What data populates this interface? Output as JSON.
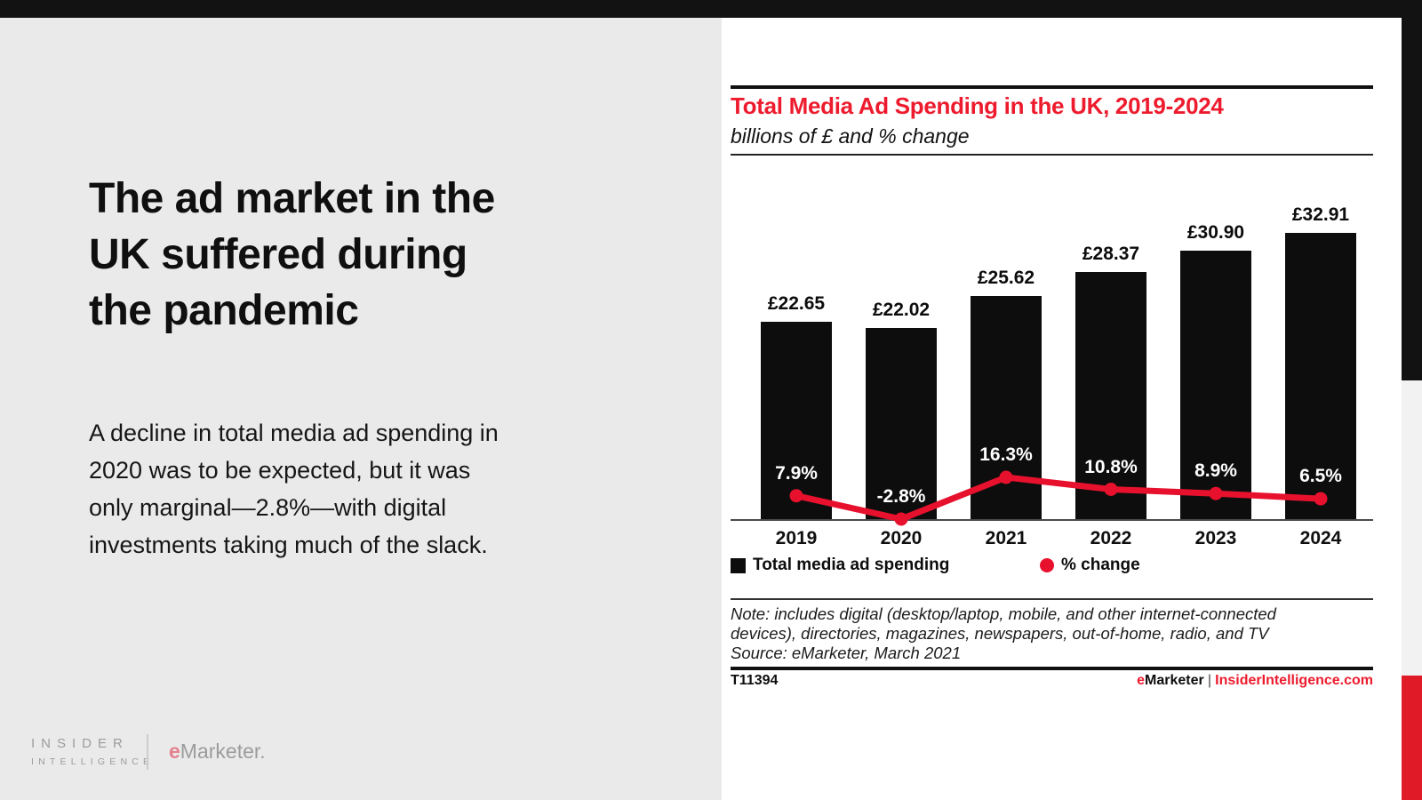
{
  "colors": {
    "accent_red": "#ed1b2d",
    "line_red": "#e8112d",
    "bar_black": "#0d0d0d",
    "top_bar_black": "#121212",
    "panel_gray": "#eaeaea",
    "strip_gray": "#f2f2f2",
    "strip_red": "#e11a28",
    "logo_gray": "#9c9c9c",
    "logo_e_red": "#e5808e"
  },
  "left_panel": {
    "headline_lines": [
      "The ad market in the",
      "UK suffered during",
      "the pandemic"
    ],
    "body_lines": [
      "A decline in total media ad spending in",
      "2020 was to be expected, but it was",
      "only marginal—2.8%—with digital",
      "investments taking much of the slack."
    ],
    "brand": {
      "insider_line1": "INSIDER",
      "insider_line2": "INTELLIGENCE",
      "emarketer_e": "e",
      "emarketer_rest": "Marketer."
    }
  },
  "chart": {
    "title": "Total Media Ad Spending in the UK, 2019-2024",
    "subtitle": "billions of £ and % change",
    "legend": [
      {
        "label": "Total media ad spending",
        "swatch": "square",
        "color": "#0d0d0d"
      },
      {
        "label": "% change",
        "swatch": "circle",
        "color": "#e8112d"
      }
    ],
    "note_lines": [
      "Note: includes digital (desktop/laptop, mobile, and other internet-connected",
      "devices), directories, magazines, newspapers, out-of-home, radio, and TV",
      "Source: eMarketer, March 2021"
    ],
    "footer": {
      "id": "T11394",
      "emarketer_e": "e",
      "emarketer_rest": "Marketer",
      "separator": "|",
      "site": "InsiderIntelligence.com"
    }
  },
  "chart_data": {
    "type": "bar",
    "subtype": "bar-line-combo",
    "title": "Total Media Ad Spending in the UK, 2019-2024",
    "units_label": "billions of £ and % change",
    "categories": [
      "2019",
      "2020",
      "2021",
      "2022",
      "2023",
      "2024"
    ],
    "series": [
      {
        "name": "Total media ad spending",
        "type": "bar",
        "unit": "billions £",
        "color": "#0d0d0d",
        "values": [
          22.65,
          22.02,
          25.62,
          28.37,
          30.9,
          32.91
        ],
        "labels": [
          "£22.65",
          "£22.02",
          "£25.62",
          "£28.37",
          "£30.90",
          "£32.91"
        ]
      },
      {
        "name": "% change",
        "type": "line",
        "unit": "%",
        "color": "#e8112d",
        "values": [
          7.9,
          -2.8,
          16.3,
          10.8,
          8.9,
          6.5
        ],
        "labels": [
          "7.9%",
          "-2.8%",
          "16.3%",
          "10.8%",
          "8.9%",
          "6.5%"
        ]
      }
    ],
    "bar_axis_min": 0,
    "grid": false,
    "legend_position": "bottom"
  }
}
